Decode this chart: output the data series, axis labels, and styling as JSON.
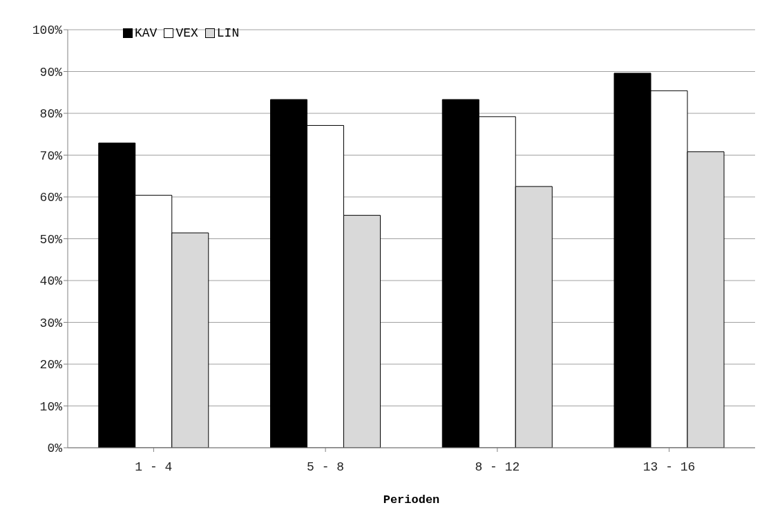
{
  "chart_data": {
    "type": "bar",
    "xlabel": "Perioden",
    "categories": [
      "1 - 4",
      "5 - 8",
      "8 - 12",
      "13 - 16"
    ],
    "series": [
      {
        "name": "KAV",
        "color": "#000000",
        "values": [
          72.9,
          83.3,
          83.3,
          89.6
        ]
      },
      {
        "name": "VEX",
        "color": "#ffffff",
        "values": [
          60.4,
          77.1,
          79.2,
          85.4
        ]
      },
      {
        "name": "LIN",
        "color": "#d9d9d9",
        "values": [
          51.4,
          55.6,
          62.5,
          70.8
        ]
      }
    ],
    "ylim": [
      0,
      100
    ],
    "yticks": [
      {
        "value": 0,
        "label": "0%"
      },
      {
        "value": 10,
        "label": "10%"
      },
      {
        "value": 20,
        "label": "20%"
      },
      {
        "value": 30,
        "label": "30%"
      },
      {
        "value": 40,
        "label": "40%"
      },
      {
        "value": 50,
        "label": "50%"
      },
      {
        "value": 60,
        "label": "60%"
      },
      {
        "value": 70,
        "label": "70%"
      },
      {
        "value": 80,
        "label": "80%"
      },
      {
        "value": 90,
        "label": "90%"
      },
      {
        "value": 100,
        "label": "100%"
      }
    ],
    "grid": "y",
    "legend": "top left"
  }
}
